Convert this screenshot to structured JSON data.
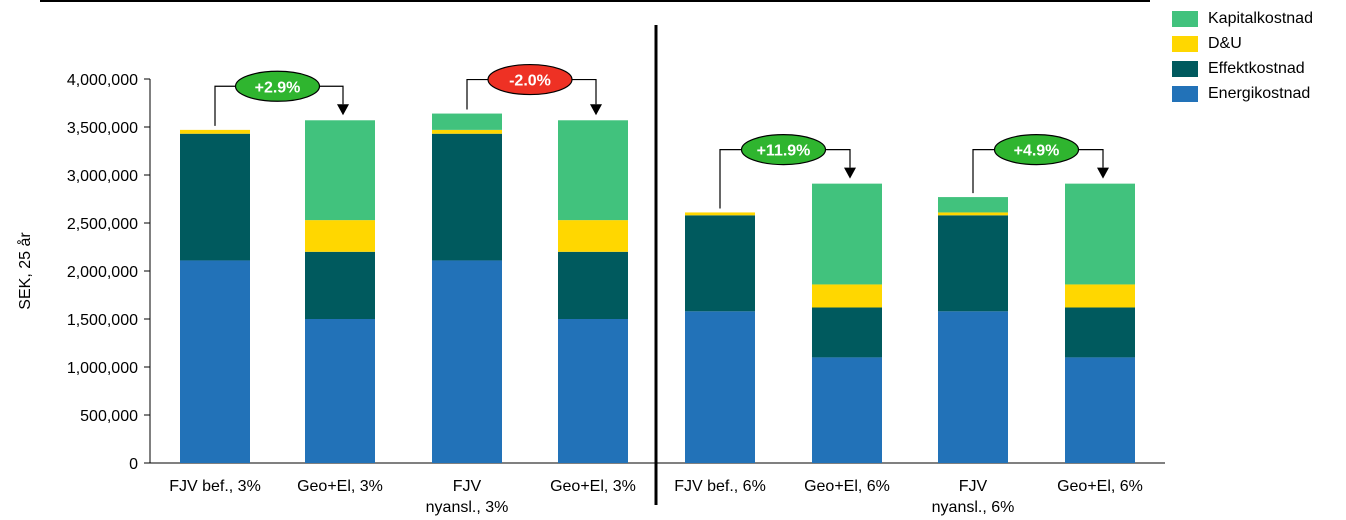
{
  "chart_data": {
    "type": "bar",
    "stacked": true,
    "ylabel": "SEK, 25 år",
    "ylim": [
      0,
      4000000
    ],
    "yticks": [
      0,
      500000,
      1000000,
      1500000,
      2000000,
      2500000,
      3000000,
      3500000,
      4000000
    ],
    "ytick_labels": [
      "0",
      "500,000",
      "1,000,000",
      "1,500,000",
      "2,000,000",
      "2,500,000",
      "3,000,000",
      "3,500,000",
      "4,000,000"
    ],
    "grid": false,
    "legend_position": "top-right",
    "categories": [
      [
        "FJV bef., 3%"
      ],
      [
        "Geo+El, 3%"
      ],
      [
        "FJV",
        "nyansl., 3%"
      ],
      [
        "Geo+El, 3%"
      ],
      [
        "FJV bef., 6%"
      ],
      [
        "Geo+El, 6%"
      ],
      [
        "FJV",
        "nyansl., 6%"
      ],
      [
        "Geo+El, 6%"
      ]
    ],
    "series": [
      {
        "name": "Energikostnad",
        "color": "#2272b8",
        "values": [
          2110000,
          1500000,
          2110000,
          1500000,
          1580000,
          1100000,
          1580000,
          1100000
        ]
      },
      {
        "name": "Effektkostnad",
        "color": "#005a5e",
        "values": [
          1320000,
          700000,
          1320000,
          700000,
          1000000,
          520000,
          1000000,
          520000
        ]
      },
      {
        "name": "D&U",
        "color": "#ffd700",
        "values": [
          40000,
          330000,
          40000,
          330000,
          30000,
          240000,
          30000,
          240000
        ]
      },
      {
        "name": "Kapitalkostnad",
        "color": "#41c27d",
        "values": [
          0,
          1040000,
          170000,
          1040000,
          0,
          1050000,
          160000,
          1050000
        ]
      }
    ],
    "annotations": [
      {
        "from": 0,
        "to": 1,
        "label": "+2.9%",
        "color": "#2fb52f"
      },
      {
        "from": 2,
        "to": 3,
        "label": "-2.0%",
        "color": "#ee3124"
      },
      {
        "from": 4,
        "to": 5,
        "label": "+11.9%",
        "color": "#2fb52f"
      },
      {
        "from": 6,
        "to": 7,
        "label": "+4.9%",
        "color": "#2fb52f"
      }
    ],
    "legend_order": [
      "Kapitalkostnad",
      "D&U",
      "Effektkostnad",
      "Energikostnad"
    ]
  }
}
